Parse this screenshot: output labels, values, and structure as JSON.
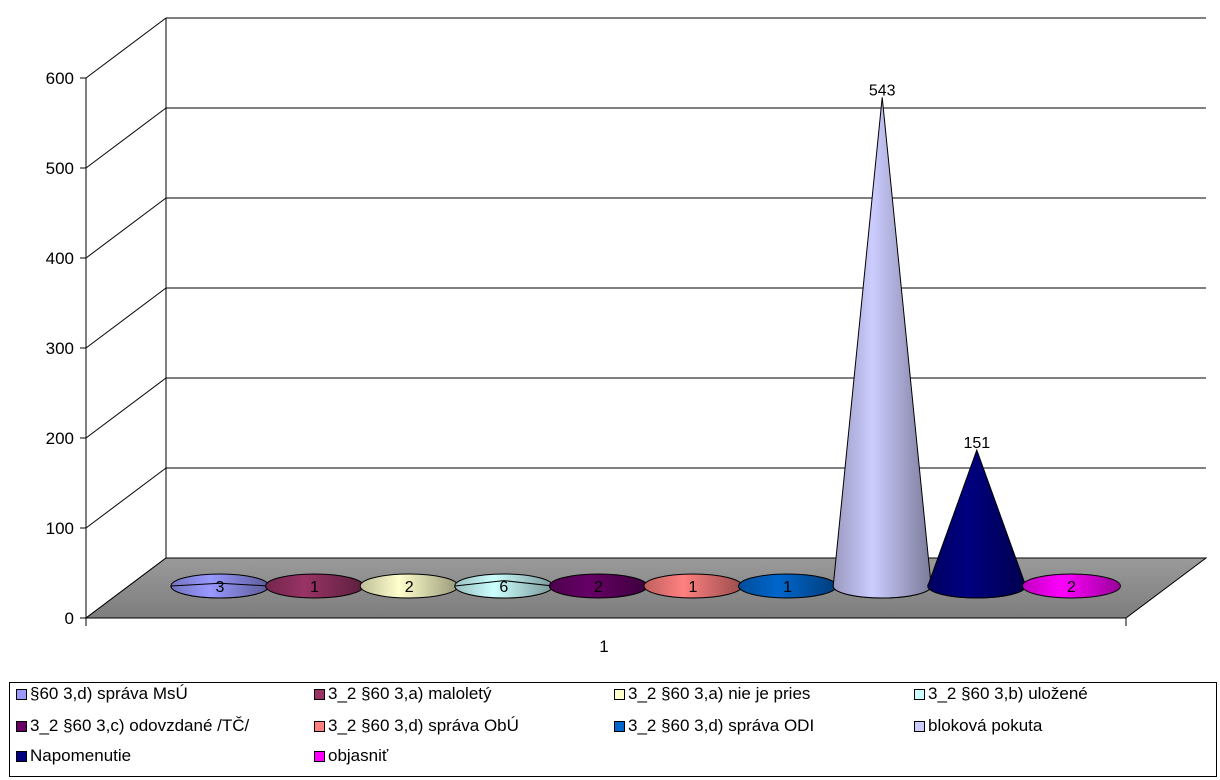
{
  "chart_data": {
    "type": "bar",
    "subtype": "3d-cone",
    "categories": [
      "1"
    ],
    "ylim": [
      0,
      600
    ],
    "yticks": [
      0,
      100,
      200,
      300,
      400,
      500,
      600
    ],
    "grid": true,
    "legend_position": "bottom",
    "series": [
      {
        "name": "§60 3,d) správa MsÚ",
        "value": 3,
        "label": "3",
        "color": "#9999ff"
      },
      {
        "name": "3_2 §60 3,a) maloletý",
        "value": 1,
        "label": "1",
        "color": "#993366"
      },
      {
        "name": "3_2 §60 3,a) nie je pries",
        "value": 2,
        "label": "2",
        "color": "#ffffcc"
      },
      {
        "name": "3_2 §60 3,b) uložené",
        "value": 6,
        "label": "6",
        "color": "#ccffff"
      },
      {
        "name": "3_2 §60 3,c) odovzdané /TČ/",
        "value": 2,
        "label": "2",
        "color": "#660066"
      },
      {
        "name": "3_2 §60 3,d)  správa ObÚ",
        "value": 1,
        "label": "1",
        "color": "#ff8080"
      },
      {
        "name": "3_2 §60 3,d) správa ODI",
        "value": 1,
        "label": "1",
        "color": "#0066cc"
      },
      {
        "name": "bloková pokuta",
        "value": 543,
        "label": "543",
        "color": "#ccccff"
      },
      {
        "name": "Napomenutie",
        "value": 151,
        "label": "151",
        "color": "#000080"
      },
      {
        "name": "objasniť",
        "value": 2,
        "label": "2",
        "color": "#ff00ff"
      }
    ]
  }
}
